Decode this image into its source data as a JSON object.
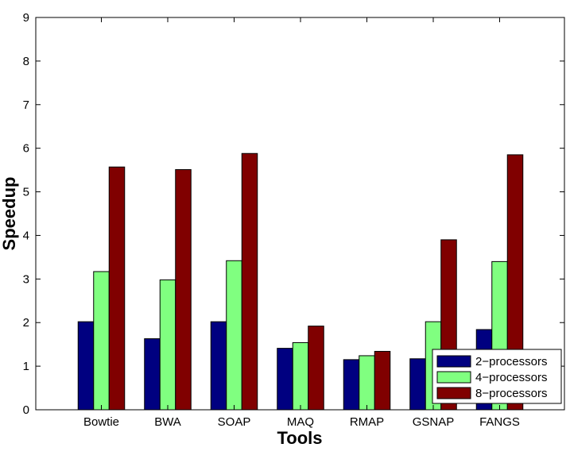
{
  "chart_data": {
    "type": "bar",
    "title": "",
    "xlabel": "Tools",
    "ylabel": "Speedup",
    "categories": [
      "Bowtie",
      "BWA",
      "SOAP",
      "MAQ",
      "RMAP",
      "GSNAP",
      "FANGS"
    ],
    "series": [
      {
        "name": "2−processors",
        "color": "#000080",
        "values": [
          2.02,
          1.63,
          2.02,
          1.41,
          1.15,
          1.17,
          1.84
        ]
      },
      {
        "name": "4−processors",
        "color": "#80ff80",
        "values": [
          3.17,
          2.98,
          3.42,
          1.54,
          1.24,
          2.02,
          3.4
        ]
      },
      {
        "name": "8−processors",
        "color": "#800000",
        "values": [
          5.57,
          5.51,
          5.88,
          1.92,
          1.34,
          3.9,
          5.85
        ]
      }
    ],
    "ylim": [
      0,
      9
    ],
    "yticks": [
      0,
      1,
      2,
      3,
      4,
      5,
      6,
      7,
      8,
      9
    ],
    "ytick_labels": [
      "0",
      "1",
      "2",
      "3",
      "4",
      "5",
      "6",
      "7",
      "8",
      "9"
    ],
    "grid": false,
    "legend_position": "bottom-right"
  }
}
